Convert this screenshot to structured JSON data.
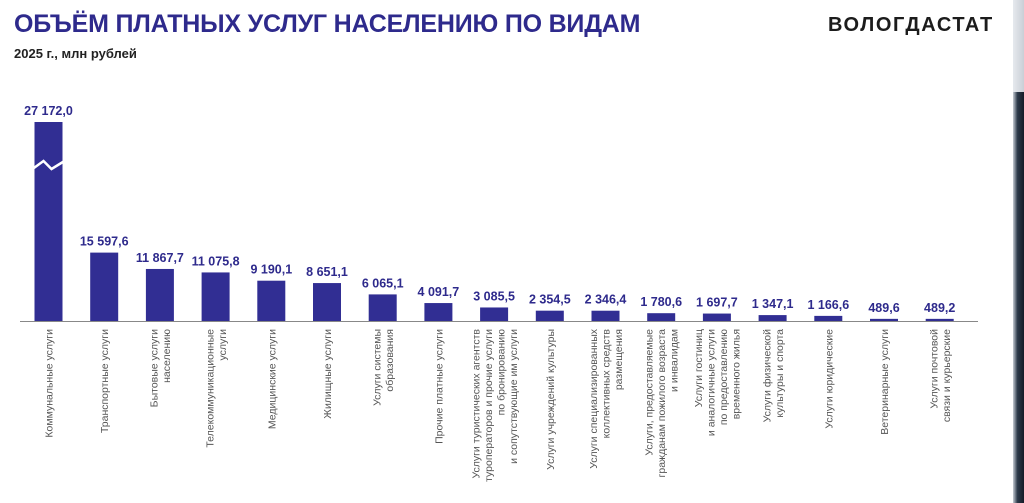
{
  "header": {
    "title": "ОБЪЁМ ПЛАТНЫХ УСЛУГ НАСЕЛЕНИЮ ПО ВИДАМ",
    "subtitle": "2025 г., млн рублей",
    "brand": "ВОЛОГДАСТАТ"
  },
  "colors": {
    "bar": "#312e93",
    "title": "#2e2a8c",
    "value_label": "#2e2a8c",
    "category_label": "#555555",
    "axis": "#888888"
  },
  "chart_data": {
    "type": "bar",
    "title": "ОБЪЁМ ПЛАТНЫХ УСЛУГ НАСЕЛЕНИЮ ПО ВИДАМ",
    "subtitle": "2025 г., млн рублей",
    "unit": "млн рублей",
    "broken_axis_bar": 0,
    "categories": [
      [
        "Коммунальные услуги"
      ],
      [
        "Транспортные услуги"
      ],
      [
        "Бытовые услуги",
        "населению"
      ],
      [
        "Телекоммуникационные",
        "услуги"
      ],
      [
        "Медицинские услуги"
      ],
      [
        "Жилищные услуги"
      ],
      [
        "Услуги системы",
        "образования"
      ],
      [
        "Прочие платные услуги"
      ],
      [
        "Услуги туристических агентств",
        "туроператоров и прочие услуги",
        "по бронированию",
        "и сопутствующие им услуги"
      ],
      [
        "Услуги учреждений культуры"
      ],
      [
        "Услуги специализированных",
        "коллективных средств",
        "размещения"
      ],
      [
        "Услуги, предоставляемые",
        "гражданам пожилого возраста",
        "и инвалидам"
      ],
      [
        "Услуги гостиниц",
        "и аналогичные услуги",
        "по предоставлению",
        "временного жилья"
      ],
      [
        "Услуги физической",
        "культуры и спорта"
      ],
      [
        "Услуги юридические"
      ],
      [
        "Ветеринарные услуги"
      ],
      [
        "Услуги почтовой",
        "связи и курьерские"
      ]
    ],
    "values": [
      27172.0,
      15597.6,
      11867.7,
      11075.8,
      9190.1,
      8651.1,
      6065.1,
      4091.7,
      3085.5,
      2354.5,
      2346.4,
      1780.6,
      1697.7,
      1347.1,
      1166.6,
      489.6,
      489.2
    ],
    "value_labels": [
      "27 172,0",
      "15 597,6",
      "11 867,7",
      "11 075,8",
      "9 190,1",
      "8 651,1",
      "6 065,1",
      "4 091,7",
      "3 085,5",
      "2 354,5",
      "2 346,4",
      "1 780,6",
      "1 697,7",
      "1 347,1",
      "1 166,6",
      "489,6",
      "489,2"
    ]
  }
}
